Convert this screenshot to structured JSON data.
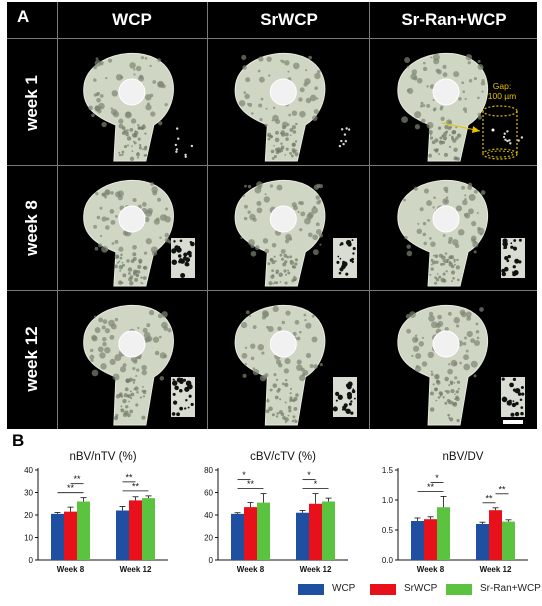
{
  "figure": {
    "panel_a_letter": "A",
    "panel_b_letter": "B",
    "columns": [
      "WCP",
      "SrWCP",
      "Sr-Ran+WCP"
    ],
    "rows": [
      "week 1",
      "week 8",
      "week 12"
    ],
    "gap_annotation": [
      "Gap:",
      "100 µm"
    ]
  },
  "legend": [
    {
      "name": "WCP",
      "color": "#1f4fa0"
    },
    {
      "name": "SrWCP",
      "color": "#e8101a"
    },
    {
      "name": "Sr-Ran+WCP",
      "color": "#5cc341"
    }
  ],
  "chart_data": [
    {
      "type": "bar",
      "title": "nBV/nTV (%)",
      "categories": [
        "Week 8",
        "Week 12"
      ],
      "ylim": [
        0,
        40
      ],
      "yticks": [
        0,
        10,
        20,
        30,
        40
      ],
      "series": [
        {
          "name": "WCP",
          "values": [
            20.5,
            22.0
          ],
          "errors": [
            0.6,
            1.8
          ]
        },
        {
          "name": "SrWCP",
          "values": [
            21.5,
            26.5
          ],
          "errors": [
            2.0,
            1.6
          ]
        },
        {
          "name": "Sr-Ran+WCP",
          "values": [
            26.0,
            27.5
          ],
          "errors": [
            1.7,
            1.0
          ]
        }
      ],
      "significance": [
        {
          "cat": 0,
          "from": 0,
          "to": 2,
          "label": "**"
        },
        {
          "cat": 0,
          "from": 1,
          "to": 2,
          "label": "**"
        },
        {
          "cat": 1,
          "from": 0,
          "to": 2,
          "label": "**"
        },
        {
          "cat": 1,
          "from": 0,
          "to": 1,
          "label": "**"
        }
      ]
    },
    {
      "type": "bar",
      "title": "cBV/cTV (%)",
      "categories": [
        "Week 8",
        "Week 12"
      ],
      "ylim": [
        0,
        80
      ],
      "yticks": [
        0,
        20,
        40,
        60,
        80
      ],
      "series": [
        {
          "name": "WCP",
          "values": [
            41,
            42
          ],
          "errors": [
            1,
            2
          ]
        },
        {
          "name": "SrWCP",
          "values": [
            47,
            50
          ],
          "errors": [
            4,
            9
          ]
        },
        {
          "name": "Sr-Ran+WCP",
          "values": [
            51,
            52
          ],
          "errors": [
            8,
            3
          ]
        }
      ],
      "significance": [
        {
          "cat": 0,
          "from": 0,
          "to": 2,
          "label": "**"
        },
        {
          "cat": 0,
          "from": 0,
          "to": 1,
          "label": "*"
        },
        {
          "cat": 1,
          "from": 0,
          "to": 2,
          "label": "*"
        },
        {
          "cat": 1,
          "from": 0,
          "to": 1,
          "label": "*"
        }
      ]
    },
    {
      "type": "bar",
      "title": "nBV/DV",
      "categories": [
        "Week 8",
        "Week 12"
      ],
      "ylim": [
        0,
        1.5
      ],
      "yticks": [
        "0.0",
        "0.5",
        "1.0",
        "1.5"
      ],
      "series": [
        {
          "name": "WCP",
          "values": [
            0.65,
            0.6
          ],
          "errors": [
            0.05,
            0.03
          ]
        },
        {
          "name": "SrWCP",
          "values": [
            0.68,
            0.83
          ],
          "errors": [
            0.04,
            0.04
          ]
        },
        {
          "name": "Sr-Ran+WCP",
          "values": [
            0.88,
            0.64
          ],
          "errors": [
            0.18,
            0.03
          ]
        }
      ],
      "significance": [
        {
          "cat": 0,
          "from": 0,
          "to": 2,
          "label": "**"
        },
        {
          "cat": 0,
          "from": 1,
          "to": 2,
          "label": "*"
        },
        {
          "cat": 1,
          "from": 0,
          "to": 1,
          "label": "**"
        },
        {
          "cat": 1,
          "from": 1,
          "to": 2,
          "label": "**"
        }
      ]
    }
  ]
}
